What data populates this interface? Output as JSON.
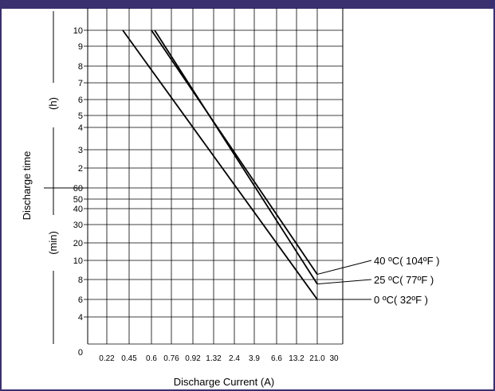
{
  "colors": {
    "header_bar": "#3a2f6f",
    "frame": "#3a2f6f",
    "grid": "#000000",
    "lines": "#000000"
  },
  "chart_data": {
    "type": "line",
    "scale": "log-log",
    "title": "",
    "xlabel": "Discharge Current (A)",
    "ylabel": "Discharge time",
    "y_unit_hours": "(h)",
    "y_unit_minutes": "(min)",
    "x_ticks": [
      "0",
      "0.22",
      "0.45",
      "0.6",
      "0.76",
      "0.92",
      "1.32",
      "2.4",
      "3.9",
      "6.6",
      "13.2",
      "21.0",
      "30"
    ],
    "y_ticks_hours": [
      "10",
      "9",
      "8",
      "7",
      "6",
      "5",
      "4",
      "3",
      "2"
    ],
    "y_ticks_minutes": [
      "60",
      "50",
      "40",
      "30",
      "20",
      "10",
      "8",
      "6",
      "4"
    ],
    "y_zero_label": "0",
    "grid": true,
    "series": [
      {
        "name": "40 ºC( 104ºF )",
        "x": [
          0.6,
          21.0
        ],
        "y_minutes": [
          600,
          8.5
        ]
      },
      {
        "name": "25 ºC(   77ºF )",
        "x": [
          0.6,
          21.0
        ],
        "y_minutes": [
          600,
          7.5
        ]
      },
      {
        "name": "0 ºC(   32ºF )",
        "x": [
          0.45,
          21.0
        ],
        "y_minutes": [
          600,
          6
        ]
      }
    ]
  }
}
